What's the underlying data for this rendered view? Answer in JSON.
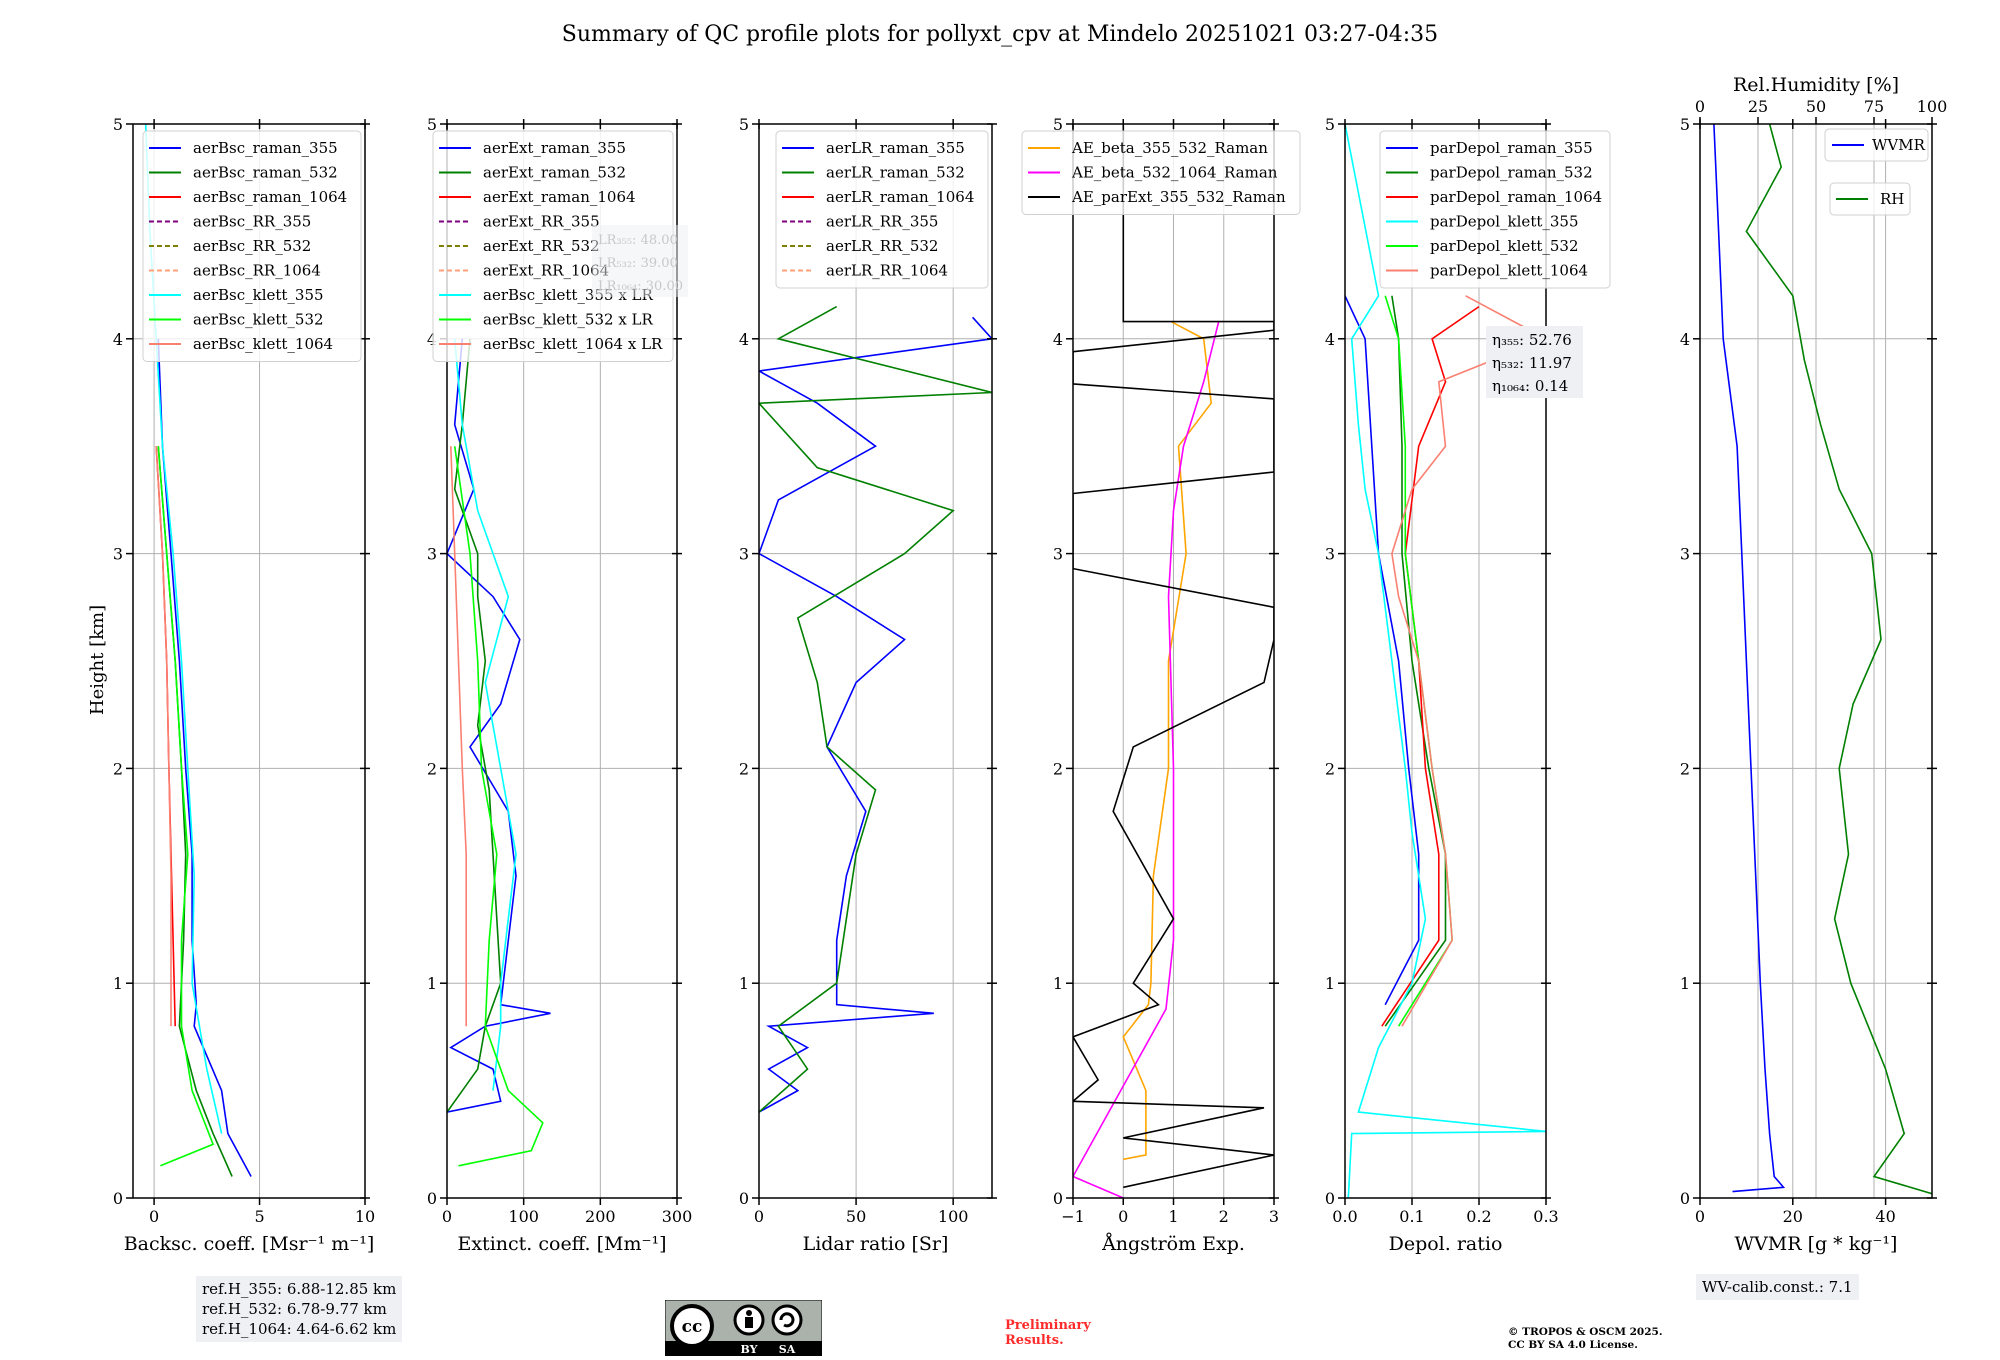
{
  "title": "Summary of QC profile plots for pollyxt_cpv at Mindelo 20251021 03:27-04:35",
  "ylabel": "Height [km]",
  "notes": {
    "ref_heights": [
      "ref.H_355: 6.88-12.85 km",
      "ref.H_532: 6.78-9.77 km",
      "ref.H_1064: 4.64-6.62 km"
    ],
    "wv_calib": "WV-calib.const.: 7.1",
    "preliminary": [
      "Preliminary",
      "Results."
    ],
    "copyright": [
      "© TROPOS & OSCM 2025.",
      "CC BY SA 4.0 License."
    ],
    "cc_badge": {
      "by": "BY",
      "sa": "SA",
      "cc": "cc"
    }
  },
  "chart_data": [
    {
      "type": "line",
      "id": "backscatter",
      "xlabel": "Backsc. coeff. [Msr⁻¹ m⁻¹]",
      "xlim": [
        -1,
        10
      ],
      "ylim": [
        0,
        5
      ],
      "xticks": [
        0,
        5,
        10
      ],
      "yticks": [
        0,
        1,
        2,
        3,
        4,
        5
      ],
      "grid": true,
      "legend": "top-right",
      "series": [
        {
          "name": "aerBsc_raman_355",
          "color": "#0000ff",
          "dash": false,
          "y": [
            0.1,
            0.3,
            0.5,
            0.8,
            0.9,
            1.2,
            1.6,
            2.0,
            2.5,
            3.0,
            3.5,
            4.0
          ],
          "x": [
            4.6,
            3.5,
            3.2,
            1.9,
            2.0,
            1.8,
            1.8,
            1.5,
            1.2,
            0.8,
            0.4,
            0.2
          ]
        },
        {
          "name": "aerBsc_raman_532",
          "color": "#008000",
          "dash": false,
          "y": [
            0.1,
            0.3,
            0.5,
            0.8,
            1.2,
            1.6,
            2.0,
            2.5,
            3.0,
            3.5
          ],
          "x": [
            3.7,
            2.8,
            2.0,
            1.2,
            1.4,
            1.5,
            1.3,
            1.0,
            0.6,
            0.2
          ]
        },
        {
          "name": "aerBsc_raman_1064",
          "color": "#ff0000",
          "dash": false,
          "y": [
            0.8,
            1.2,
            1.6,
            2.0,
            2.5,
            3.0,
            3.5
          ],
          "x": [
            1.0,
            0.9,
            0.8,
            0.7,
            0.6,
            0.4,
            0.1
          ]
        },
        {
          "name": "aerBsc_RR_355",
          "color": "#800080",
          "dash": true,
          "y": [],
          "x": []
        },
        {
          "name": "aerBsc_RR_532",
          "color": "#808000",
          "dash": true,
          "y": [],
          "x": []
        },
        {
          "name": "aerBsc_RR_1064",
          "color": "#ffa07a",
          "dash": true,
          "y": [],
          "x": []
        },
        {
          "name": "aerBsc_klett_355",
          "color": "#00ffff",
          "dash": false,
          "y": [
            0.3,
            0.6,
            1.0,
            1.5,
            2.0,
            2.5,
            3.0,
            3.5,
            4.0,
            4.5,
            5.0
          ],
          "x": [
            3.2,
            2.5,
            1.8,
            1.9,
            1.6,
            1.3,
            0.9,
            0.4,
            0.1,
            -0.2,
            -0.4
          ]
        },
        {
          "name": "aerBsc_klett_532",
          "color": "#00ff00",
          "dash": false,
          "y": [
            0.15,
            0.25,
            0.5,
            0.8,
            1.2,
            1.6,
            2.0,
            2.5,
            3.0,
            3.5
          ],
          "x": [
            0.3,
            2.8,
            1.8,
            1.3,
            1.3,
            1.6,
            1.3,
            1.0,
            0.6,
            0.2
          ]
        },
        {
          "name": "aerBsc_klett_1064",
          "color": "#fa8072",
          "dash": false,
          "y": [
            0.8,
            1.5,
            2.0,
            2.5,
            3.0,
            3.5
          ],
          "x": [
            0.8,
            0.8,
            0.7,
            0.6,
            0.4,
            0.1
          ]
        }
      ]
    },
    {
      "type": "line",
      "id": "extinction",
      "xlabel": "Extinct. coeff. [Mm⁻¹]",
      "xlim": [
        0,
        300
      ],
      "ylim": [
        0,
        5
      ],
      "xticks": [
        0,
        100,
        200,
        300
      ],
      "yticks": [
        0,
        1,
        2,
        3,
        4,
        5
      ],
      "grid": true,
      "legend": "top-right",
      "annotation": [
        "LR₃₅₅: 48.00",
        "LR₅₃₂: 39.00",
        "LR₁₀₆₄: 30.00"
      ],
      "series": [
        {
          "name": "aerExt_raman_355",
          "color": "#0000ff",
          "dash": false,
          "y": [
            0.4,
            0.45,
            0.6,
            0.7,
            0.8,
            0.86,
            0.9,
            1.2,
            1.5,
            1.8,
            2.1,
            2.3,
            2.6,
            2.8,
            3.0,
            3.3,
            3.6,
            4.0
          ],
          "x": [
            0,
            70,
            60,
            5,
            50,
            135,
            70,
            80,
            90,
            80,
            30,
            70,
            95,
            60,
            0,
            35,
            10,
            20
          ]
        },
        {
          "name": "aerExt_raman_532",
          "color": "#008000",
          "dash": false,
          "y": [
            0.4,
            0.6,
            0.8,
            1.0,
            1.3,
            1.6,
            1.9,
            2.2,
            2.5,
            2.8,
            3.0,
            3.3,
            3.6,
            4.0
          ],
          "x": [
            0,
            40,
            50,
            70,
            65,
            60,
            55,
            40,
            50,
            40,
            40,
            10,
            20,
            30
          ]
        },
        {
          "name": "aerExt_raman_1064",
          "color": "#ff0000",
          "dash": false,
          "y": [],
          "x": []
        },
        {
          "name": "aerExt_RR_355",
          "color": "#800080",
          "dash": true,
          "y": [],
          "x": []
        },
        {
          "name": "aerExt_RR_532",
          "color": "#808000",
          "dash": true,
          "y": [],
          "x": []
        },
        {
          "name": "aerExt_RR_1064",
          "color": "#ffa07a",
          "dash": true,
          "y": [],
          "x": []
        },
        {
          "name": "aerBsc_klett_355 x LR",
          "color": "#00ffff",
          "dash": false,
          "y": [
            0.5,
            0.8,
            1.0,
            1.3,
            1.6,
            2.0,
            2.4,
            2.8,
            3.2,
            3.6,
            4.0
          ],
          "x": [
            60,
            70,
            70,
            80,
            90,
            70,
            50,
            80,
            40,
            20,
            10
          ]
        },
        {
          "name": "aerBsc_klett_532 x LR",
          "color": "#00ff00",
          "dash": false,
          "y": [
            0.15,
            0.22,
            0.35,
            0.5,
            0.8,
            1.2,
            1.6,
            2.0,
            2.5,
            3.0,
            3.5
          ],
          "x": [
            15,
            110,
            125,
            80,
            50,
            55,
            65,
            45,
            40,
            30,
            10
          ]
        },
        {
          "name": "aerBsc_klett_1064 x LR",
          "color": "#fa8072",
          "dash": false,
          "y": [
            0.8,
            1.2,
            1.6,
            2.0,
            2.5,
            3.0,
            3.5
          ],
          "x": [
            25,
            25,
            25,
            20,
            15,
            10,
            5
          ]
        }
      ]
    },
    {
      "type": "line",
      "id": "lidar_ratio",
      "xlabel": "Lidar ratio [Sr]",
      "xlim": [
        0,
        120
      ],
      "ylim": [
        0,
        5
      ],
      "xticks": [
        0,
        50,
        100
      ],
      "yticks": [
        0,
        1,
        2,
        3,
        4,
        5
      ],
      "grid": true,
      "legend": "top-right",
      "series": [
        {
          "name": "aerLR_raman_355",
          "color": "#0000ff",
          "dash": false,
          "y": [
            0.4,
            0.5,
            0.6,
            0.7,
            0.8,
            0.86,
            0.9,
            1.2,
            1.5,
            1.8,
            2.1,
            2.4,
            2.6,
            2.8,
            3.0,
            3.25,
            3.5,
            3.7,
            3.85,
            4.0,
            4.1
          ],
          "x": [
            0,
            20,
            5,
            25,
            5,
            90,
            40,
            40,
            45,
            55,
            35,
            50,
            75,
            40,
            0,
            10,
            60,
            30,
            0,
            120,
            110
          ]
        },
        {
          "name": "aerLR_raman_532",
          "color": "#008000",
          "dash": false,
          "y": [
            0.4,
            0.6,
            0.8,
            1.0,
            1.3,
            1.6,
            1.9,
            2.1,
            2.4,
            2.7,
            3.0,
            3.2,
            3.4,
            3.7,
            3.75,
            4.0,
            4.15
          ],
          "x": [
            0,
            25,
            10,
            40,
            45,
            50,
            60,
            35,
            30,
            20,
            75,
            100,
            30,
            0,
            120,
            10,
            40
          ]
        },
        {
          "name": "aerLR_raman_1064",
          "color": "#ff0000",
          "dash": false,
          "y": [],
          "x": []
        },
        {
          "name": "aerLR_RR_355",
          "color": "#800080",
          "dash": true,
          "y": [],
          "x": []
        },
        {
          "name": "aerLR_RR_532",
          "color": "#808000",
          "dash": true,
          "y": [],
          "x": []
        },
        {
          "name": "aerLR_RR_1064",
          "color": "#ffa07a",
          "dash": true,
          "y": [],
          "x": []
        }
      ]
    },
    {
      "type": "line",
      "id": "angstrom",
      "xlabel": "Ångström Exp.",
      "xlim": [
        -1,
        3
      ],
      "ylim": [
        0,
        5
      ],
      "xticks": [
        -1,
        0,
        1,
        2,
        3
      ],
      "yticks": [
        0,
        1,
        2,
        3,
        4,
        5
      ],
      "grid": true,
      "legend": "top-left",
      "series": [
        {
          "name": "AE_beta_355_532_Raman",
          "color": "#ffa500",
          "dash": false,
          "y": [
            0.18,
            0.2,
            0.5,
            0.75,
            0.9,
            1.0,
            1.5,
            2.0,
            2.5,
            3.0,
            3.5,
            3.7,
            4.0,
            4.08
          ],
          "x": [
            0,
            0.45,
            0.45,
            0.0,
            0.5,
            0.55,
            0.6,
            0.9,
            0.9,
            1.25,
            1.1,
            1.75,
            1.6,
            0.95
          ]
        },
        {
          "name": "AE_beta_532_1064_Raman",
          "color": "#ff00ff",
          "dash": false,
          "y": [
            0.0,
            0.1,
            0.88,
            1.2,
            1.6,
            2.0,
            2.4,
            2.8,
            3.2,
            3.5,
            3.8,
            4.08
          ],
          "x": [
            0.0,
            -1.0,
            0.85,
            1.0,
            1.0,
            1.0,
            0.95,
            0.9,
            1.0,
            1.2,
            1.6,
            1.9
          ]
        },
        {
          "name": "AE_parExt_355_532_Raman",
          "color": "#000000",
          "dash": false,
          "y": [
            0.05,
            0.2,
            0.28,
            0.42,
            0.45,
            0.55,
            0.75,
            0.9,
            1.0,
            1.3,
            1.8,
            2.1,
            2.4,
            2.6,
            2.75,
            2.93,
            3.28,
            3.38,
            3.72,
            3.79,
            3.94,
            4.04,
            4.08,
            4.08,
            5.0
          ],
          "x": [
            0,
            3,
            0,
            2.8,
            -1,
            -0.5,
            -1,
            0.7,
            0.2,
            1.0,
            -0.2,
            0.2,
            2.8,
            3.0,
            3.0,
            -1,
            -1,
            3,
            3,
            -1,
            -1,
            3,
            3,
            0,
            0
          ]
        }
      ]
    },
    {
      "type": "line",
      "id": "depol",
      "xlabel": "Depol. ratio",
      "xlim": [
        0,
        0.3
      ],
      "ylim": [
        0,
        5
      ],
      "xticks": [
        0.0,
        0.1,
        0.2,
        0.3
      ],
      "yticks": [
        0,
        1,
        2,
        3,
        4,
        5
      ],
      "grid": true,
      "legend": "top-right",
      "annotation": [
        "η₃₅₅: 52.76",
        "η₅₃₂: 11.97",
        "η₁₀₆₄: 0.14"
      ],
      "series": [
        {
          "name": "parDepol_raman_355",
          "color": "#0000ff",
          "dash": false,
          "y": [
            0.9,
            1.2,
            1.6,
            2.0,
            2.5,
            3.0,
            3.5,
            4.0,
            4.2
          ],
          "x": [
            0.06,
            0.11,
            0.11,
            0.095,
            0.08,
            0.05,
            0.04,
            0.03,
            0.0
          ]
        },
        {
          "name": "parDepol_raman_532",
          "color": "#008000",
          "dash": false,
          "y": [
            0.8,
            1.2,
            1.6,
            2.0,
            2.5,
            3.0,
            3.5,
            4.0,
            4.2
          ],
          "x": [
            0.06,
            0.15,
            0.15,
            0.125,
            0.1,
            0.085,
            0.085,
            0.08,
            0.07
          ]
        },
        {
          "name": "parDepol_raman_1064",
          "color": "#ff0000",
          "dash": false,
          "y": [
            0.8,
            1.2,
            1.6,
            2.0,
            2.5,
            3.0,
            3.5,
            3.8,
            4.0,
            4.15
          ],
          "x": [
            0.055,
            0.14,
            0.14,
            0.12,
            0.11,
            0.09,
            0.11,
            0.15,
            0.13,
            0.2
          ]
        },
        {
          "name": "parDepol_klett_355",
          "color": "#00ffff",
          "dash": false,
          "y": [
            0.0,
            0.3,
            0.31,
            0.4,
            0.7,
            1.0,
            1.3,
            1.7,
            2.0,
            2.5,
            3.0,
            3.3,
            3.6,
            4.0,
            4.2,
            5.0
          ],
          "x": [
            0.005,
            0.01,
            0.3,
            0.02,
            0.05,
            0.1,
            0.12,
            0.1,
            0.09,
            0.07,
            0.05,
            0.03,
            0.02,
            0.01,
            0.05,
            0.0
          ]
        },
        {
          "name": "parDepol_klett_532",
          "color": "#00ff00",
          "dash": false,
          "y": [
            0.8,
            1.2,
            1.6,
            2.0,
            2.5,
            3.0,
            3.5,
            4.0,
            4.2
          ],
          "x": [
            0.08,
            0.16,
            0.15,
            0.13,
            0.11,
            0.09,
            0.09,
            0.08,
            0.06
          ]
        },
        {
          "name": "parDepol_klett_1064",
          "color": "#fa8072",
          "dash": false,
          "y": [
            0.8,
            1.2,
            1.6,
            2.0,
            2.5,
            2.8,
            3.0,
            3.3,
            3.5,
            3.8,
            4.0,
            4.2
          ],
          "x": [
            0.085,
            0.16,
            0.15,
            0.13,
            0.11,
            0.08,
            0.07,
            0.1,
            0.15,
            0.14,
            0.3,
            0.18
          ]
        }
      ]
    },
    {
      "type": "line",
      "id": "wvmr_rh",
      "xlabel": "WVMR [g * kg⁻¹]",
      "x2label": "Rel.Humidity [%]",
      "xlim": [
        0,
        50
      ],
      "x2lim": [
        0,
        100
      ],
      "ylim": [
        0,
        5
      ],
      "xticks": [
        0,
        20,
        40
      ],
      "x2ticks": [
        0,
        25,
        50,
        75,
        100
      ],
      "yticks": [
        0,
        1,
        2,
        3,
        4,
        5
      ],
      "grid": true,
      "legend": "top-right",
      "series": [
        {
          "name": "WVMR",
          "axis": "x",
          "color": "#0000ff",
          "dash": false,
          "y": [
            0.03,
            0.05,
            0.1,
            0.3,
            0.6,
            1.0,
            1.5,
            2.0,
            2.5,
            3.0,
            3.5,
            4.0,
            4.5,
            5.0
          ],
          "x": [
            7,
            18,
            16,
            15,
            14,
            13,
            12,
            11,
            10,
            9,
            8,
            5,
            4,
            3
          ]
        },
        {
          "name": "RH",
          "axis": "x2",
          "color": "#008000",
          "dash": false,
          "y": [
            0.02,
            0.1,
            0.3,
            0.6,
            1.0,
            1.3,
            1.6,
            2.0,
            2.3,
            2.6,
            3.0,
            3.3,
            3.6,
            3.9,
            4.2,
            4.5,
            4.8,
            5.0
          ],
          "x": [
            100,
            75,
            88,
            80,
            65,
            58,
            64,
            60,
            66,
            78,
            74,
            60,
            52,
            45,
            40,
            20,
            35,
            30
          ]
        }
      ]
    }
  ]
}
